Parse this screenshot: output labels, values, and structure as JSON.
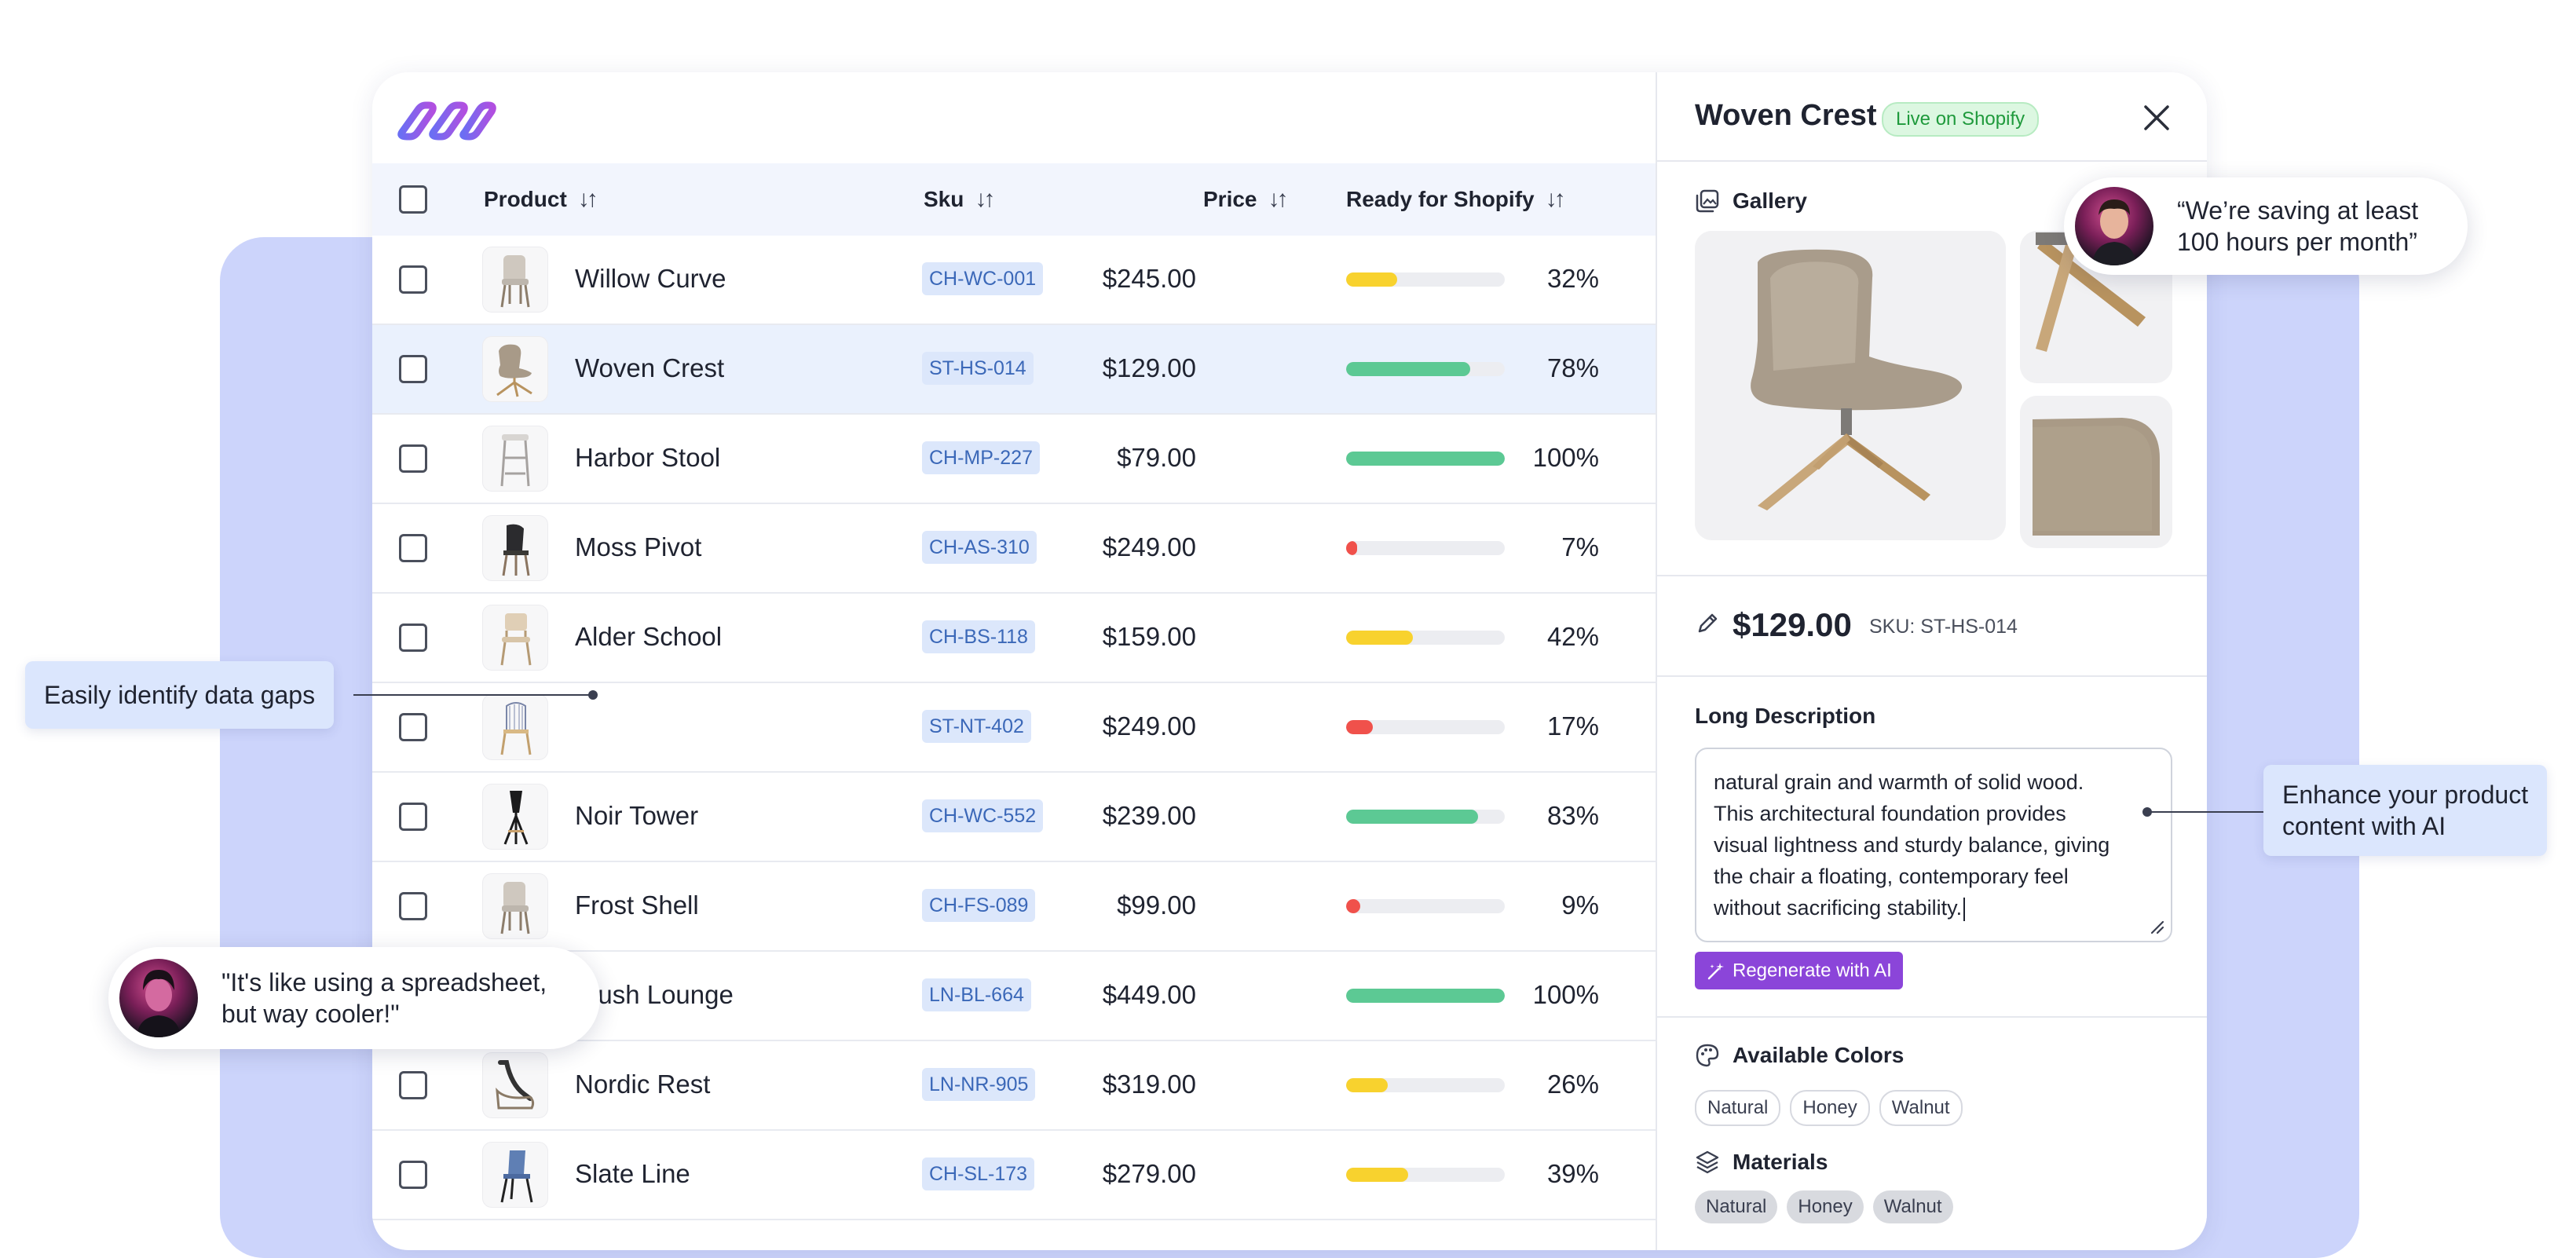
{
  "table": {
    "headers": {
      "product": "Product",
      "sku": "Sku",
      "price": "Price",
      "ready": "Ready for Shopify"
    },
    "rows": [
      {
        "name": "Willow Curve",
        "sku": "CH-WC-001",
        "price": "$245.00",
        "ready_pct": 32,
        "ready_label": "32%",
        "bar_color": "#f8d22e",
        "selected": false,
        "chair": "light"
      },
      {
        "name": "Woven Crest",
        "sku": "ST-HS-014",
        "price": "$129.00",
        "ready_pct": 78,
        "ready_label": "78%",
        "bar_color": "#5cc994",
        "selected": true,
        "chair": "swivel"
      },
      {
        "name": "Harbor Stool",
        "sku": "CH-MP-227",
        "price": "$79.00",
        "ready_pct": 100,
        "ready_label": "100%",
        "bar_color": "#5cc994",
        "selected": false,
        "chair": "stool"
      },
      {
        "name": "Moss Pivot",
        "sku": "CH-AS-310",
        "price": "$249.00",
        "ready_pct": 7,
        "ready_label": "7%",
        "bar_color": "#f0514b",
        "selected": false,
        "chair": "dark"
      },
      {
        "name": "Alder School",
        "sku": "CH-BS-118",
        "price": "$159.00",
        "ready_pct": 42,
        "ready_label": "42%",
        "bar_color": "#f8d22e",
        "selected": false,
        "chair": "wood"
      },
      {
        "name": "",
        "sku": "ST-NT-402",
        "price": "$249.00",
        "ready_pct": 17,
        "ready_label": "17%",
        "bar_color": "#f0514b",
        "selected": false,
        "chair": "wire"
      },
      {
        "name": "Noir Tower",
        "sku": "CH-WC-552",
        "price": "$239.00",
        "ready_pct": 83,
        "ready_label": "83%",
        "bar_color": "#5cc994",
        "selected": false,
        "chair": "black"
      },
      {
        "name": "Frost Shell",
        "sku": "CH-FS-089",
        "price": "$99.00",
        "ready_pct": 9,
        "ready_label": "9%",
        "bar_color": "#f0514b",
        "selected": false,
        "chair": "light"
      },
      {
        "name": "Plush Lounge",
        "sku": "LN-BL-664",
        "price": "$449.00",
        "ready_pct": 100,
        "ready_label": "100%",
        "bar_color": "#5cc994",
        "selected": false,
        "chair": "lounge"
      },
      {
        "name": "Nordic Rest",
        "sku": "LN-NR-905",
        "price": "$319.00",
        "ready_pct": 26,
        "ready_label": "26%",
        "bar_color": "#f8d22e",
        "selected": false,
        "chair": "rest"
      },
      {
        "name": "Slate Line",
        "sku": "CH-SL-173",
        "price": "$279.00",
        "ready_pct": 39,
        "ready_label": "39%",
        "bar_color": "#f8d22e",
        "selected": false,
        "chair": "blue"
      }
    ]
  },
  "panel": {
    "title": "Woven Crest",
    "status_badge": "Live on Shopify",
    "gallery_label": "Gallery",
    "price": "$129.00",
    "sku_label": "SKU: ST-HS-014",
    "description_label": "Long Description",
    "description_lines": [
      "natural grain and warmth of solid wood.",
      "This architectural foundation provides",
      "visual lightness and sturdy balance, giving",
      "the chair a floating, contemporary feel",
      "without sacrificing stability."
    ],
    "regenerate_label": "Regenerate with AI",
    "colors_label": "Available Colors",
    "colors": [
      "Natural",
      "Honey",
      "Walnut"
    ],
    "materials_label": "Materials",
    "materials": [
      "Natural",
      "Honey",
      "Walnut"
    ]
  },
  "callouts": {
    "data_gaps": "Easily identify data gaps",
    "enhance_line1": "Enhance your product",
    "enhance_line2": "content with AI"
  },
  "quotes": {
    "top_line1": "“We’re saving at least",
    "top_line2": "100 hours per month”",
    "bottom_line1": "\"It's like using a spreadsheet,",
    "bottom_line2": "but way cooler!\""
  },
  "colors": {
    "accent_purple": "#8b45d9",
    "bar_green": "#5cc994",
    "bar_yellow": "#f8d22e",
    "bar_red": "#f0514b",
    "sku_bg": "#dce7fb",
    "background_panel": "#ccd4fb"
  }
}
